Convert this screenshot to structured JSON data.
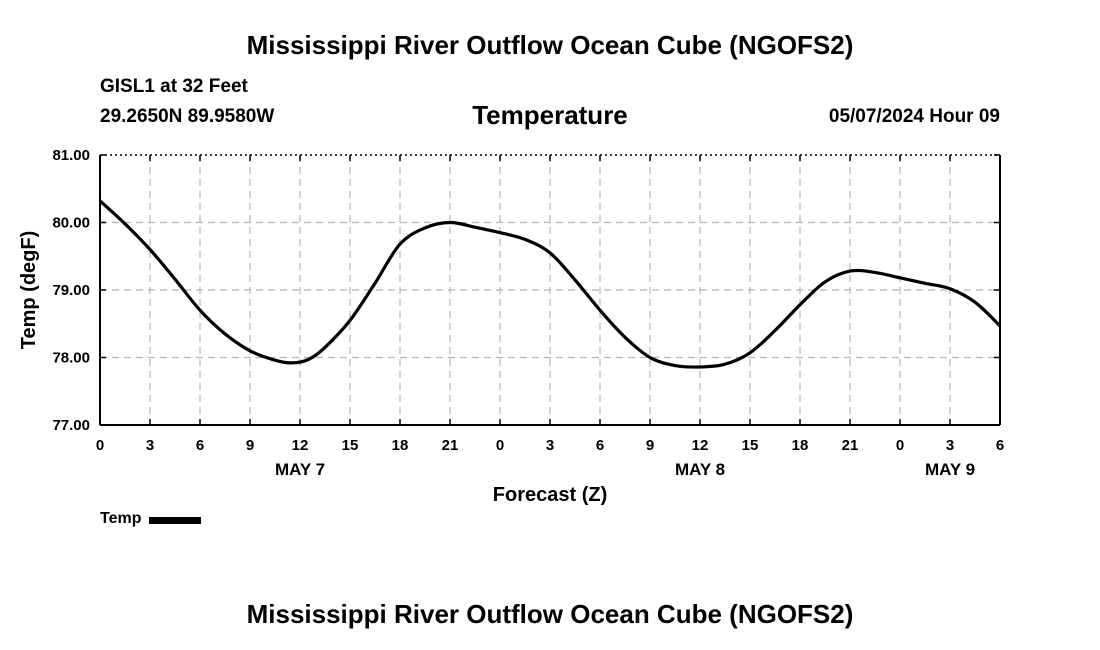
{
  "header": {
    "title": "Mississippi River Outflow Ocean Cube (NGOFS2)",
    "station": "GISL1 at 32 Feet",
    "coordinates": "29.2650N  89.9580W",
    "parameter": "Temperature",
    "datetime": "05/07/2024 Hour 09"
  },
  "footer": {
    "title": "Mississippi River Outflow Ocean Cube (NGOFS2)"
  },
  "legend": {
    "label": "Temp",
    "color": "#000000"
  },
  "chart_data": {
    "type": "line",
    "title": "Temperature",
    "xlabel": "Forecast (Z)",
    "ylabel": "Temp (degF)",
    "ylim": [
      77.0,
      81.0
    ],
    "yticks": [
      "77.00",
      "78.00",
      "79.00",
      "80.00",
      "81.00"
    ],
    "xlim": [
      0,
      54
    ],
    "xticks": [
      0,
      3,
      6,
      9,
      12,
      15,
      18,
      21,
      24,
      27,
      30,
      33,
      36,
      39,
      42,
      45,
      48,
      51,
      54
    ],
    "xtick_labels": [
      "0",
      "3",
      "6",
      "9",
      "12",
      "15",
      "18",
      "21",
      "0",
      "3",
      "6",
      "9",
      "12",
      "15",
      "18",
      "21",
      "0",
      "3",
      "6"
    ],
    "date_labels": [
      {
        "x": 12,
        "label": "MAY 7"
      },
      {
        "x": 36,
        "label": "MAY 8"
      },
      {
        "x": 51,
        "label": "MAY 9"
      }
    ],
    "grid": true,
    "series": [
      {
        "name": "Temp",
        "color": "#000000",
        "x": [
          0,
          1.5,
          3,
          4.5,
          6,
          7.5,
          9,
          10.5,
          11.5,
          12.5,
          13.5,
          15,
          16.5,
          18,
          19.5,
          21,
          22.5,
          24,
          25.5,
          27,
          28.5,
          30,
          31.5,
          33,
          34.5,
          36,
          37.5,
          39,
          40.5,
          42,
          43.5,
          45,
          46.5,
          48,
          49.5,
          51,
          52.5,
          54
        ],
        "values": [
          80.32,
          79.98,
          79.6,
          79.16,
          78.7,
          78.35,
          78.1,
          77.96,
          77.92,
          77.97,
          78.15,
          78.55,
          79.1,
          79.68,
          79.92,
          80.0,
          79.93,
          79.85,
          79.75,
          79.55,
          79.15,
          78.7,
          78.3,
          78.0,
          77.88,
          77.86,
          77.9,
          78.07,
          78.4,
          78.78,
          79.12,
          79.28,
          79.26,
          79.18,
          79.1,
          79.02,
          78.82,
          78.47
        ]
      }
    ]
  }
}
